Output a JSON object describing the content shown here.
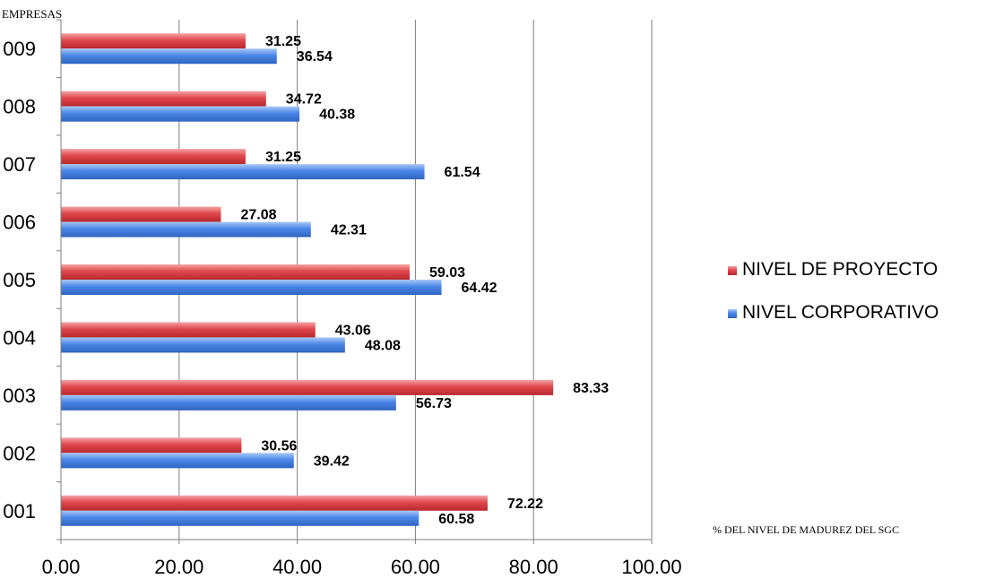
{
  "chart_data": {
    "type": "bar",
    "orientation": "horizontal",
    "categories": [
      "001",
      "002",
      "003",
      "004",
      "005",
      "006",
      "007",
      "008",
      "009"
    ],
    "series": [
      {
        "name": "NIVEL DE PROYECTO",
        "values": [
          72.22,
          30.56,
          83.33,
          43.06,
          59.03,
          27.08,
          31.25,
          34.72,
          31.25
        ],
        "value_labels": [
          "72.22",
          "30.56",
          "83.33",
          "43.06",
          "59.03",
          "27.08",
          "31.25",
          "34.72",
          "31.25"
        ],
        "color": "#e0474c"
      },
      {
        "name": "NIVEL CORPORATIVO",
        "values": [
          60.58,
          39.42,
          56.73,
          48.08,
          64.42,
          42.31,
          61.54,
          40.38,
          36.54
        ],
        "value_labels": [
          "60.58",
          "39.42",
          "56.73",
          "48.08",
          "64.42",
          "42.31",
          "61.54",
          "40.38",
          "36.54"
        ],
        "color": "#4a86e8"
      }
    ],
    "title": "",
    "ylabel": "EMPRESAS",
    "xlabel": "% DEL NIVEL DE MADUREZ DEL SGC",
    "xlim": [
      0,
      100
    ],
    "xticks": [
      0,
      20,
      40,
      60,
      80,
      100
    ],
    "xtick_labels": [
      "0.00",
      "20.00",
      "40.00",
      "60.00",
      "80.00",
      "100.00"
    ],
    "grid": "vertical",
    "legend_position": "right"
  }
}
